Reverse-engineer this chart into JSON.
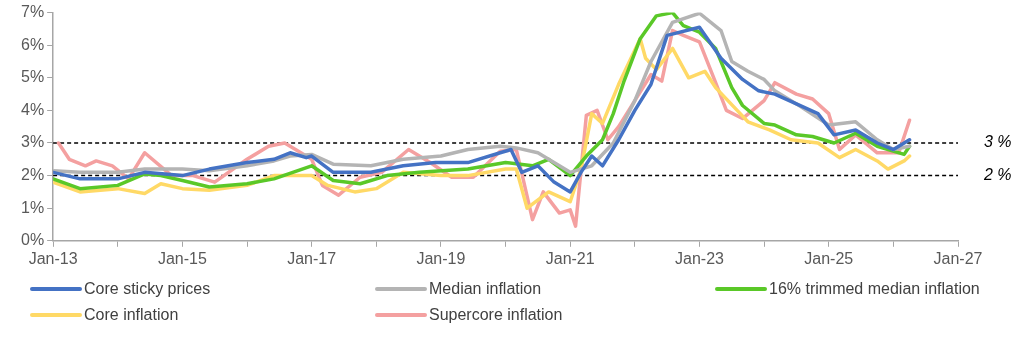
{
  "chart_data": {
    "type": "line",
    "xlim": [
      "2013-01",
      "2027-01"
    ],
    "xticks": [
      {
        "value": "2013-01",
        "label": "Jan-13"
      },
      {
        "value": "2014-01",
        "label": null
      },
      {
        "value": "2015-01",
        "label": "Jan-15"
      },
      {
        "value": "2016-01",
        "label": null
      },
      {
        "value": "2017-01",
        "label": "Jan-17"
      },
      {
        "value": "2018-01",
        "label": null
      },
      {
        "value": "2019-01",
        "label": "Jan-19"
      },
      {
        "value": "2020-01",
        "label": null
      },
      {
        "value": "2021-01",
        "label": "Jan-21"
      },
      {
        "value": "2022-01",
        "label": null
      },
      {
        "value": "2023-01",
        "label": "Jan-23"
      },
      {
        "value": "2024-01",
        "label": null
      },
      {
        "value": "2025-01",
        "label": "Jan-25"
      },
      {
        "value": "2026-01",
        "label": null
      },
      {
        "value": "2027-01",
        "label": "Jan-27"
      }
    ],
    "ylim": [
      0,
      7
    ],
    "yticks": [
      {
        "value": 0,
        "label": "0%"
      },
      {
        "value": 1,
        "label": "1%"
      },
      {
        "value": 2,
        "label": "2%"
      },
      {
        "value": 3,
        "label": "3%"
      },
      {
        "value": 4,
        "label": "4%"
      },
      {
        "value": 5,
        "label": "5%"
      },
      {
        "value": 6,
        "label": "6%"
      },
      {
        "value": 7,
        "label": "7%"
      }
    ],
    "grid": false,
    "legend": "bottom",
    "marker": "none",
    "line_style": "solid",
    "ref_lines": [
      {
        "axis": "y",
        "value": 3,
        "label": "3 %",
        "color": "#000000",
        "line_style": "dashed"
      },
      {
        "axis": "y",
        "value": 2,
        "label": "2 %",
        "color": "#000000",
        "line_style": "dashed"
      }
    ],
    "series": [
      {
        "name": "Core sticky prices",
        "color": "#4472c4",
        "x": [
          "2013-01",
          "2013-06",
          "2014-01",
          "2014-06",
          "2015-01",
          "2015-06",
          "2016-01",
          "2016-06",
          "2016-09",
          "2016-12",
          "2017-01",
          "2017-05",
          "2017-12",
          "2018-06",
          "2018-12",
          "2019-06",
          "2019-12",
          "2020-02",
          "2020-04",
          "2020-07",
          "2020-10",
          "2021-01",
          "2021-03",
          "2021-05",
          "2021-07",
          "2021-10",
          "2022-01",
          "2022-04",
          "2022-07",
          "2023-01",
          "2023-05",
          "2023-09",
          "2023-12",
          "2024-03",
          "2024-07",
          "2024-11",
          "2025-02",
          "2025-06",
          "2025-10",
          "2026-01",
          "2026-04"
        ],
        "values": [
          2.1,
          1.9,
          1.9,
          2.1,
          2.0,
          2.2,
          2.4,
          2.5,
          2.7,
          2.55,
          2.6,
          2.1,
          2.1,
          2.3,
          2.4,
          2.4,
          2.7,
          2.8,
          2.1,
          2.3,
          1.8,
          1.5,
          2.1,
          2.6,
          2.3,
          3.1,
          4.0,
          4.8,
          6.3,
          6.55,
          5.6,
          4.95,
          4.6,
          4.5,
          4.2,
          3.9,
          3.25,
          3.4,
          3.0,
          2.8,
          3.1
        ]
      },
      {
        "name": "Median inflation",
        "color": "#b4b4b4",
        "x": [
          "2013-01",
          "2013-06",
          "2014-01",
          "2014-06",
          "2015-01",
          "2015-06",
          "2016-01",
          "2016-06",
          "2016-09",
          "2017-01",
          "2017-05",
          "2017-12",
          "2018-06",
          "2019-01",
          "2019-06",
          "2019-12",
          "2020-03",
          "2020-07",
          "2020-10",
          "2021-01",
          "2021-05",
          "2021-09",
          "2022-01",
          "2022-04",
          "2022-08",
          "2023-01",
          "2023-05",
          "2023-07",
          "2023-10",
          "2024-01",
          "2024-03",
          "2024-07",
          "2025-01",
          "2025-06",
          "2025-10",
          "2026-01",
          "2026-04"
        ],
        "values": [
          2.15,
          2.1,
          2.1,
          2.2,
          2.2,
          2.15,
          2.3,
          2.45,
          2.6,
          2.65,
          2.35,
          2.3,
          2.5,
          2.6,
          2.8,
          2.9,
          2.85,
          2.7,
          2.4,
          2.1,
          2.3,
          3.0,
          4.3,
          5.5,
          6.7,
          6.98,
          6.45,
          5.5,
          5.2,
          4.95,
          4.6,
          4.2,
          3.55,
          3.65,
          3.1,
          2.8,
          2.9
        ]
      },
      {
        "name": "16% trimmed median inflation",
        "color": "#5ac828",
        "x": [
          "2013-01",
          "2013-06",
          "2014-01",
          "2014-06",
          "2014-09",
          "2015-01",
          "2015-06",
          "2016-01",
          "2016-06",
          "2017-01",
          "2017-05",
          "2017-10",
          "2018-03",
          "2018-09",
          "2019-06",
          "2020-01",
          "2020-06",
          "2020-09",
          "2021-01",
          "2021-04",
          "2021-07",
          "2021-09",
          "2021-11",
          "2022-02",
          "2022-05",
          "2022-08",
          "2022-10",
          "2023-01",
          "2023-04",
          "2023-07",
          "2023-09",
          "2024-01",
          "2024-03",
          "2024-07",
          "2024-10",
          "2025-02",
          "2025-06",
          "2025-10",
          "2026-03",
          "2026-04"
        ],
        "values": [
          1.9,
          1.6,
          1.7,
          2.05,
          2.0,
          1.85,
          1.65,
          1.75,
          1.9,
          2.3,
          1.85,
          1.75,
          2.0,
          2.1,
          2.2,
          2.4,
          2.3,
          2.5,
          2.0,
          2.6,
          3.1,
          3.9,
          4.9,
          6.2,
          6.9,
          7.0,
          6.6,
          6.4,
          5.9,
          4.7,
          4.15,
          3.6,
          3.55,
          3.25,
          3.2,
          3.0,
          3.3,
          2.9,
          2.65,
          2.9
        ]
      },
      {
        "name": "Core inflation",
        "color": "#ffd966",
        "x": [
          "2013-01",
          "2013-06",
          "2014-01",
          "2014-06",
          "2014-09",
          "2015-01",
          "2015-06",
          "2016-01",
          "2016-06",
          "2017-01",
          "2017-04",
          "2017-09",
          "2018-01",
          "2018-06",
          "2019-01",
          "2019-06",
          "2020-01",
          "2020-03",
          "2020-05",
          "2020-09",
          "2021-01",
          "2021-03",
          "2021-05",
          "2021-07",
          "2021-10",
          "2022-02",
          "2022-03",
          "2022-05",
          "2022-08",
          "2022-11",
          "2023-02",
          "2023-04",
          "2023-08",
          "2023-10",
          "2024-02",
          "2024-06",
          "2024-11",
          "2025-03",
          "2025-06",
          "2025-10",
          "2025-12",
          "2026-03",
          "2026-04"
        ],
        "values": [
          1.8,
          1.5,
          1.6,
          1.45,
          1.75,
          1.6,
          1.55,
          1.7,
          2.0,
          2.0,
          1.7,
          1.5,
          1.6,
          2.1,
          2.0,
          2.0,
          2.2,
          2.2,
          1.0,
          1.5,
          1.2,
          2.2,
          3.9,
          3.6,
          4.8,
          6.2,
          5.6,
          5.25,
          5.9,
          5.0,
          5.2,
          4.7,
          4.0,
          3.65,
          3.4,
          3.1,
          3.0,
          2.55,
          2.8,
          2.45,
          2.2,
          2.45,
          2.6
        ]
      },
      {
        "name": "Supercore inflation",
        "color": "#f4a0a0",
        "x": [
          "2013-02",
          "2013-04",
          "2013-07",
          "2013-09",
          "2013-12",
          "2014-03",
          "2014-06",
          "2014-11",
          "2015-03",
          "2015-07",
          "2016-01",
          "2016-05",
          "2016-08",
          "2017-01",
          "2017-03",
          "2017-06",
          "2017-10",
          "2018-02",
          "2018-07",
          "2018-11",
          "2019-03",
          "2019-07",
          "2019-12",
          "2020-03",
          "2020-06",
          "2020-08",
          "2020-11",
          "2021-01",
          "2021-02",
          "2021-04",
          "2021-06",
          "2021-08",
          "2021-10",
          "2022-01",
          "2022-04",
          "2022-06",
          "2022-08",
          "2022-10",
          "2023-01",
          "2023-04",
          "2023-06",
          "2023-09",
          "2024-01",
          "2024-03",
          "2024-07",
          "2024-10",
          "2025-01",
          "2025-03",
          "2025-06",
          "2025-10",
          "2026-02",
          "2026-04"
        ],
        "values": [
          3.0,
          2.5,
          2.3,
          2.45,
          2.3,
          1.9,
          2.7,
          2.0,
          2.0,
          1.8,
          2.5,
          2.9,
          3.0,
          2.5,
          1.7,
          1.4,
          1.95,
          2.1,
          2.8,
          2.4,
          1.95,
          1.95,
          2.75,
          2.8,
          0.65,
          1.5,
          0.85,
          0.95,
          0.45,
          3.85,
          4.0,
          3.1,
          3.5,
          4.3,
          5.1,
          4.9,
          6.45,
          6.3,
          6.1,
          4.85,
          4.0,
          3.75,
          4.3,
          4.85,
          4.5,
          4.35,
          3.9,
          2.8,
          3.25,
          2.7,
          2.7,
          3.7
        ]
      }
    ]
  }
}
